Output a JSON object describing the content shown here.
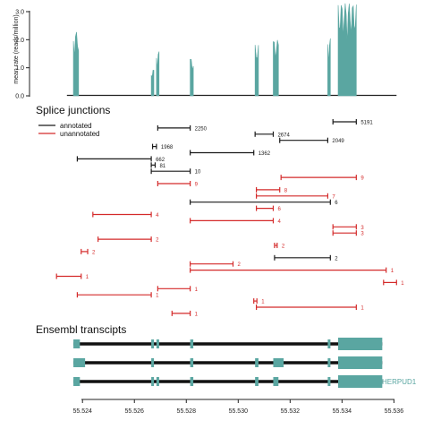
{
  "colors": {
    "coverage": "#5aa6a1",
    "annotated": "#1a1a1a",
    "unannotated": "#d42a2a",
    "exon": "#5aa6a1",
    "transcript_line": "#111111"
  },
  "chart_data": [
    {
      "type": "area",
      "ylabel": "mean rate (reads/million)",
      "ylim": [
        0,
        3.2
      ],
      "yticks": [
        "0.0",
        "1.0",
        "2.0",
        "3.0"
      ],
      "xlim": [
        55.5232,
        55.5364
      ],
      "peaks": [
        {
          "x0": 55.52365,
          "x1": 55.52385,
          "y": 2.3
        },
        {
          "x0": 55.52665,
          "x1": 55.52675,
          "y": 0.95
        },
        {
          "x0": 55.52685,
          "x1": 55.52695,
          "y": 1.6
        },
        {
          "x0": 55.52815,
          "x1": 55.52827,
          "y": 1.35
        },
        {
          "x0": 55.53065,
          "x1": 55.53078,
          "y": 1.85
        },
        {
          "x0": 55.53135,
          "x1": 55.53155,
          "y": 2.0
        },
        {
          "x0": 55.53345,
          "x1": 55.53355,
          "y": 2.05
        },
        {
          "x0": 55.53385,
          "x1": 55.53455,
          "y": 3.3
        }
      ]
    },
    {
      "type": "scatter",
      "title": "Splice junctions",
      "legend": {
        "position": "top-left",
        "annotated_label": "annotated",
        "unannotated_label": "unannotated"
      },
      "junctions": [
        {
          "start": 55.53365,
          "end": 55.53455,
          "count": "5191",
          "type": "annotated"
        },
        {
          "start": 55.5269,
          "end": 55.52815,
          "count": "2250",
          "type": "annotated"
        },
        {
          "start": 55.53065,
          "end": 55.53135,
          "count": "2674",
          "type": "annotated"
        },
        {
          "start": 55.5316,
          "end": 55.53345,
          "count": "2049",
          "type": "annotated"
        },
        {
          "start": 55.5267,
          "end": 55.52685,
          "count": "1968",
          "type": "annotated"
        },
        {
          "start": 55.52815,
          "end": 55.5306,
          "count": "1362",
          "type": "annotated"
        },
        {
          "start": 55.5238,
          "end": 55.52665,
          "count": "662",
          "type": "annotated"
        },
        {
          "start": 55.52665,
          "end": 55.5268,
          "count": "81",
          "type": "annotated"
        },
        {
          "start": 55.52665,
          "end": 55.52815,
          "count": "10",
          "type": "annotated"
        },
        {
          "start": 55.53165,
          "end": 55.53455,
          "count": "9",
          "type": "unannotated"
        },
        {
          "start": 55.5269,
          "end": 55.52815,
          "count": "9",
          "type": "unannotated"
        },
        {
          "start": 55.5307,
          "end": 55.5316,
          "count": "8",
          "type": "unannotated"
        },
        {
          "start": 55.5307,
          "end": 55.53345,
          "count": "7",
          "type": "unannotated"
        },
        {
          "start": 55.52815,
          "end": 55.53355,
          "count": "6",
          "type": "annotated"
        },
        {
          "start": 55.5307,
          "end": 55.53135,
          "count": "6",
          "type": "unannotated"
        },
        {
          "start": 55.5244,
          "end": 55.52665,
          "count": "4",
          "type": "unannotated"
        },
        {
          "start": 55.52815,
          "end": 55.53135,
          "count": "4",
          "type": "unannotated"
        },
        {
          "start": 55.53365,
          "end": 55.53455,
          "count": "3",
          "type": "unannotated"
        },
        {
          "start": 55.53365,
          "end": 55.53455,
          "count": "3",
          "type": "unannotated"
        },
        {
          "start": 55.5246,
          "end": 55.52665,
          "count": "2",
          "type": "unannotated"
        },
        {
          "start": 55.5314,
          "end": 55.5315,
          "count": "2",
          "type": "unannotated"
        },
        {
          "start": 55.52395,
          "end": 55.5242,
          "count": "2",
          "type": "unannotated"
        },
        {
          "start": 55.5314,
          "end": 55.53355,
          "count": "2",
          "type": "annotated"
        },
        {
          "start": 55.52815,
          "end": 55.5298,
          "count": "2",
          "type": "unannotated"
        },
        {
          "start": 55.52815,
          "end": 55.5357,
          "count": "1",
          "type": "unannotated"
        },
        {
          "start": 55.523,
          "end": 55.52395,
          "count": "1",
          "type": "unannotated"
        },
        {
          "start": 55.5356,
          "end": 55.5361,
          "count": "1",
          "type": "unannotated"
        },
        {
          "start": 55.5269,
          "end": 55.52815,
          "count": "1",
          "type": "unannotated"
        },
        {
          "start": 55.5238,
          "end": 55.52665,
          "count": "1",
          "type": "unannotated"
        },
        {
          "start": 55.5306,
          "end": 55.53072,
          "count": "1",
          "type": "unannotated"
        },
        {
          "start": 55.5307,
          "end": 55.53455,
          "count": "1",
          "type": "unannotated"
        },
        {
          "start": 55.52745,
          "end": 55.52815,
          "count": "1",
          "type": "unannotated"
        }
      ]
    },
    {
      "type": "table",
      "title": "Ensembl transcipts",
      "gene_label": "HERPUD1",
      "transcripts": [
        {
          "start": 55.52365,
          "end": 55.53555,
          "exons": [
            [
              55.52365,
              55.5239
            ],
            [
              55.52665,
              55.52675
            ],
            [
              55.52685,
              55.52695
            ],
            [
              55.52815,
              55.52827
            ],
            [
              55.53345,
              55.53355
            ],
            [
              55.53385,
              55.53555
            ]
          ]
        },
        {
          "start": 55.52365,
          "end": 55.53555,
          "exons": [
            [
              55.52365,
              55.5241
            ],
            [
              55.52665,
              55.52675
            ],
            [
              55.52815,
              55.52827
            ],
            [
              55.53065,
              55.53078
            ],
            [
              55.53135,
              55.53175
            ],
            [
              55.53345,
              55.53355
            ],
            [
              55.53385,
              55.53555
            ]
          ]
        },
        {
          "start": 55.52365,
          "end": 55.53555,
          "exons": [
            [
              55.52365,
              55.5239
            ],
            [
              55.52665,
              55.52675
            ],
            [
              55.52685,
              55.52695
            ],
            [
              55.52815,
              55.52827
            ],
            [
              55.53065,
              55.53078
            ],
            [
              55.53135,
              55.53155
            ],
            [
              55.53345,
              55.53355
            ],
            [
              55.53385,
              55.53555
            ]
          ]
        }
      ],
      "xticks": [
        "55.524",
        "55.526",
        "55.528",
        "55.530",
        "55.532",
        "55.534",
        "55.536"
      ],
      "xtick_values": [
        55.524,
        55.526,
        55.528,
        55.53,
        55.532,
        55.534,
        55.536
      ]
    }
  ]
}
